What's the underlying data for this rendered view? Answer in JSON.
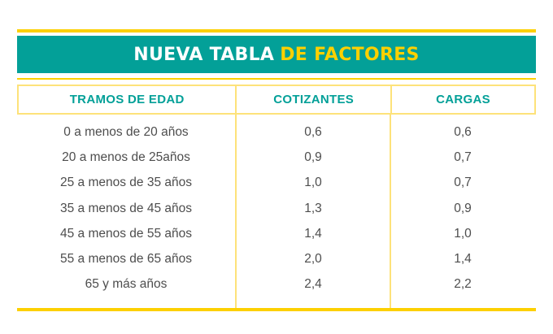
{
  "title": {
    "part1": "NUEVA TABLA",
    "part2": "DE FACTORES"
  },
  "colors": {
    "teal": "#03a098",
    "yellow": "#fdd000",
    "text": "#4d4d4d"
  },
  "table": {
    "headers": [
      "TRAMOS DE EDAD",
      "COTIZANTES",
      "CARGAS"
    ],
    "rows": [
      [
        "0 a menos de 20 años",
        "0,6",
        "0,6"
      ],
      [
        "20 a menos de 25años",
        "0,9",
        "0,7"
      ],
      [
        "25 a menos de 35 años",
        "1,0",
        "0,7"
      ],
      [
        "35 a menos de 45 años",
        "1,3",
        "0,9"
      ],
      [
        "45 a menos de 55 años",
        "1,4",
        "1,0"
      ],
      [
        "55 a menos de 65 años",
        "2,0",
        "1,4"
      ],
      [
        "65 y más años",
        "2,4",
        "2,2"
      ]
    ]
  }
}
